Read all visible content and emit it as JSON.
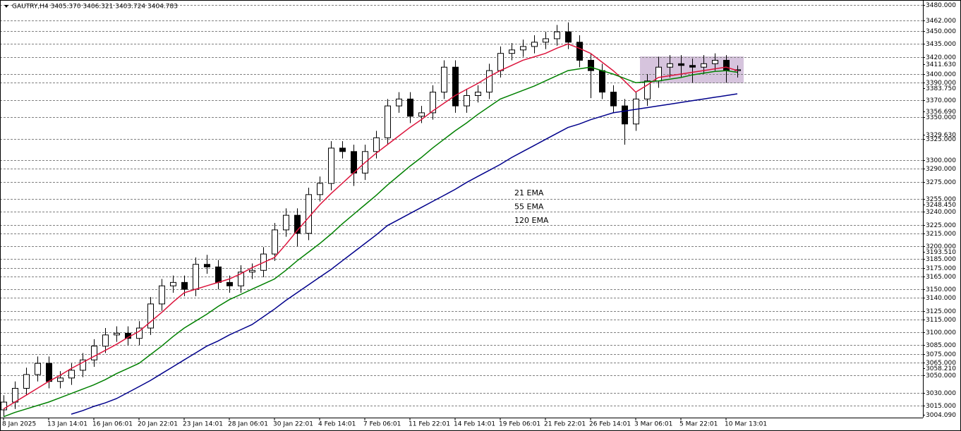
{
  "chart_data": {
    "type": "candlestick",
    "title": "GAUTRY,H4  3405.370 3406.321 3403.724 3404.783",
    "categories": [
      "8 Jan 2025",
      null,
      null,
      null,
      "13 Jan 14:01",
      null,
      null,
      null,
      "16 Jan 06:01",
      null,
      null,
      null,
      "20 Jan 22:01",
      null,
      null,
      null,
      "23 Jan 14:01",
      null,
      null,
      null,
      "28 Jan 06:01",
      null,
      null,
      null,
      "30 Jan 22:01",
      null,
      null,
      null,
      "4 Feb 14:01",
      null,
      null,
      null,
      "7 Feb 06:01",
      null,
      null,
      null,
      "11 Feb 22:01",
      null,
      null,
      null,
      "14 Feb 14:01",
      null,
      null,
      null,
      "19 Feb 06:01",
      null,
      null,
      null,
      "21 Feb 22:01",
      null,
      null,
      null,
      "26 Feb 14:01",
      null,
      null,
      null,
      "3 Mar 06:01",
      null,
      null,
      null,
      "5 Mar 22:01",
      null,
      null,
      null,
      "10 Mar 13:01",
      null
    ],
    "ohlc": {
      "open": [
        3010,
        3019,
        3035,
        3051,
        3064,
        3043,
        3047,
        3056,
        3068,
        3084,
        3097,
        3099,
        3093,
        3105,
        3133,
        3154,
        3158,
        3150,
        3179,
        3176,
        3158,
        3154,
        3170,
        3172,
        3191,
        3219,
        3236,
        3215,
        3260,
        3273,
        3314,
        3310,
        3285,
        3310,
        3326,
        3363,
        3371,
        3351,
        3355,
        3379,
        3408,
        3363,
        3375,
        3379,
        3404,
        3424,
        3428,
        3432,
        3437,
        3441,
        3449,
        3437,
        3416,
        3404,
        3379,
        3363,
        3342,
        3371,
        3392,
        3408,
        3412,
        3410,
        3408,
        3412,
        3416,
        3404
      ],
      "high": [
        3027,
        3043,
        3059,
        3072,
        3072,
        3055,
        3064,
        3076,
        3092,
        3105,
        3107,
        3107,
        3113,
        3141,
        3162,
        3166,
        3166,
        3187,
        3190,
        3184,
        3166,
        3178,
        3180,
        3199,
        3227,
        3244,
        3244,
        3268,
        3281,
        3322,
        3322,
        3318,
        3318,
        3334,
        3371,
        3379,
        3379,
        3363,
        3387,
        3416,
        3416,
        3383,
        3387,
        3412,
        3432,
        3436,
        3440,
        3445,
        3449,
        3457,
        3460,
        3445,
        3424,
        3412,
        3387,
        3371,
        3379,
        3400,
        3420,
        3422,
        3422,
        3418,
        3422,
        3424,
        3422,
        3410
      ],
      "low": [
        3002,
        3011,
        3027,
        3043,
        3035,
        3035,
        3039,
        3048,
        3060,
        3076,
        3089,
        3085,
        3085,
        3097,
        3125,
        3146,
        3142,
        3142,
        3168,
        3150,
        3146,
        3146,
        3162,
        3164,
        3183,
        3211,
        3200,
        3207,
        3252,
        3265,
        3302,
        3270,
        3277,
        3302,
        3318,
        3355,
        3343,
        3343,
        3347,
        3371,
        3355,
        3355,
        3367,
        3371,
        3396,
        3416,
        3420,
        3424,
        3429,
        3433,
        3429,
        3408,
        3372,
        3371,
        3355,
        3318,
        3334,
        3363,
        3384,
        3396,
        3396,
        3390,
        3400,
        3404,
        3390,
        3396
      ],
      "close": [
        3019,
        3035,
        3051,
        3064,
        3043,
        3047,
        3056,
        3068,
        3084,
        3097,
        3099,
        3093,
        3105,
        3133,
        3154,
        3158,
        3150,
        3179,
        3176,
        3158,
        3154,
        3170,
        3172,
        3191,
        3219,
        3236,
        3215,
        3260,
        3273,
        3314,
        3310,
        3285,
        3310,
        3326,
        3363,
        3371,
        3351,
        3355,
        3379,
        3408,
        3363,
        3375,
        3379,
        3404,
        3424,
        3428,
        3432,
        3437,
        3441,
        3449,
        3437,
        3416,
        3404,
        3379,
        3363,
        3342,
        3371,
        3392,
        3408,
        3412,
        3410,
        3408,
        3412,
        3416,
        3404,
        3405
      ]
    },
    "series": [
      {
        "name": "21 EMA",
        "color": "#dc143c",
        "values": [
          3011,
          3019,
          3027,
          3035,
          3043,
          3050,
          3058,
          3065,
          3072,
          3079,
          3086,
          3094,
          3101,
          3112,
          3123,
          3135,
          3146,
          3150,
          3154,
          3158,
          3162,
          3168,
          3175,
          3181,
          3187,
          3202,
          3218,
          3233,
          3248,
          3261,
          3273,
          3285,
          3297,
          3308,
          3318,
          3328,
          3338,
          3347,
          3357,
          3366,
          3375,
          3382,
          3389,
          3397,
          3404,
          3410,
          3416,
          3420,
          3424,
          3430,
          3435,
          3430,
          3424,
          3414,
          3404,
          3392,
          3379,
          3387,
          3396,
          3398,
          3400,
          3402,
          3404,
          3406,
          3408,
          3404
        ]
      },
      {
        "name": "55 EMA",
        "color": "#008000",
        "values": [
          3002,
          3007,
          3011,
          3015,
          3019,
          3024,
          3029,
          3034,
          3039,
          3045,
          3052,
          3058,
          3064,
          3074,
          3084,
          3095,
          3105,
          3113,
          3121,
          3130,
          3138,
          3144,
          3150,
          3156,
          3162,
          3172,
          3183,
          3193,
          3203,
          3214,
          3226,
          3237,
          3248,
          3259,
          3271,
          3282,
          3293,
          3303,
          3314,
          3324,
          3334,
          3343,
          3353,
          3362,
          3371,
          3376,
          3381,
          3386,
          3392,
          3398,
          3404,
          3406,
          3408,
          3404,
          3400,
          3395,
          3390,
          3391,
          3392,
          3394,
          3396,
          3399,
          3401,
          3403,
          3404,
          3402
        ]
      },
      {
        "name": "120 EMA",
        "color": "#00008b",
        "values": [
          null,
          null,
          null,
          null,
          null,
          null,
          3005,
          3009,
          3014,
          3018,
          3023,
          3030,
          3037,
          3044,
          3052,
          3060,
          3068,
          3076,
          3084,
          3090,
          3097,
          3103,
          3109,
          3118,
          3127,
          3137,
          3146,
          3155,
          3164,
          3173,
          3183,
          3193,
          3203,
          3213,
          3224,
          3231,
          3238,
          3245,
          3252,
          3259,
          3266,
          3274,
          3281,
          3288,
          3295,
          3303,
          3310,
          3317,
          3324,
          3331,
          3338,
          3342,
          3347,
          3351,
          3355,
          3357,
          3359,
          3361,
          3363,
          3365,
          3367,
          3369,
          3371,
          3373,
          3375,
          3377
        ]
      }
    ],
    "ylim": [
      3001,
      3486
    ],
    "yticks": [
      {
        "value": 3480,
        "label": "3480.000"
      },
      {
        "value": 3462,
        "label": "3462.000"
      },
      {
        "value": 3450,
        "label": "3450.000"
      },
      {
        "value": 3435,
        "label": "3435.000"
      },
      {
        "value": 3420,
        "label": "3420.000"
      },
      {
        "value": 3400,
        "label": "3400.000"
      },
      {
        "value": 3390,
        "label": "3390.000"
      },
      {
        "value": 3370,
        "label": "3370.000"
      },
      {
        "value": 3350,
        "label": "3350.000"
      },
      {
        "value": 3325,
        "label": "3325.000"
      },
      {
        "value": 3300,
        "label": "3300.000"
      },
      {
        "value": 3290,
        "label": "3290.000"
      },
      {
        "value": 3275,
        "label": "3275.000"
      },
      {
        "value": 3255,
        "label": "3255.000"
      },
      {
        "value": 3240,
        "label": "3240.000"
      },
      {
        "value": 3225,
        "label": "3225.000"
      },
      {
        "value": 3215,
        "label": "3215.000"
      },
      {
        "value": 3200,
        "label": "3200.000"
      },
      {
        "value": 3185,
        "label": "3185.000"
      },
      {
        "value": 3175,
        "label": "3175.000"
      },
      {
        "value": 3165,
        "label": "3165.000"
      },
      {
        "value": 3150,
        "label": "3150.000"
      },
      {
        "value": 3140,
        "label": "3140.000"
      },
      {
        "value": 3125,
        "label": "3125.000"
      },
      {
        "value": 3115,
        "label": "3115.000"
      },
      {
        "value": 3100,
        "label": "3100.000"
      },
      {
        "value": 3085,
        "label": "3085.000"
      },
      {
        "value": 3075,
        "label": "3075.000"
      },
      {
        "value": 3065,
        "label": "3065.000"
      },
      {
        "value": 3050,
        "label": "3050.000"
      },
      {
        "value": 3030,
        "label": "3030.000"
      },
      {
        "value": 3015,
        "label": "3015.000"
      }
    ],
    "scale_labels": [
      {
        "value": 3411.63,
        "label": "3411.630"
      },
      {
        "value": 3383.75,
        "label": "3383.750"
      },
      {
        "value": 3356.69,
        "label": "3356.690"
      },
      {
        "value": 3329.63,
        "label": "3329.630"
      },
      {
        "value": 3248.45,
        "label": "3248.450"
      },
      {
        "value": 3193.51,
        "label": "3193.510"
      },
      {
        "value": 3058.21,
        "label": "3058.210"
      },
      {
        "value": 3004.09,
        "label": "3004.090"
      }
    ],
    "grid": true
  }
}
